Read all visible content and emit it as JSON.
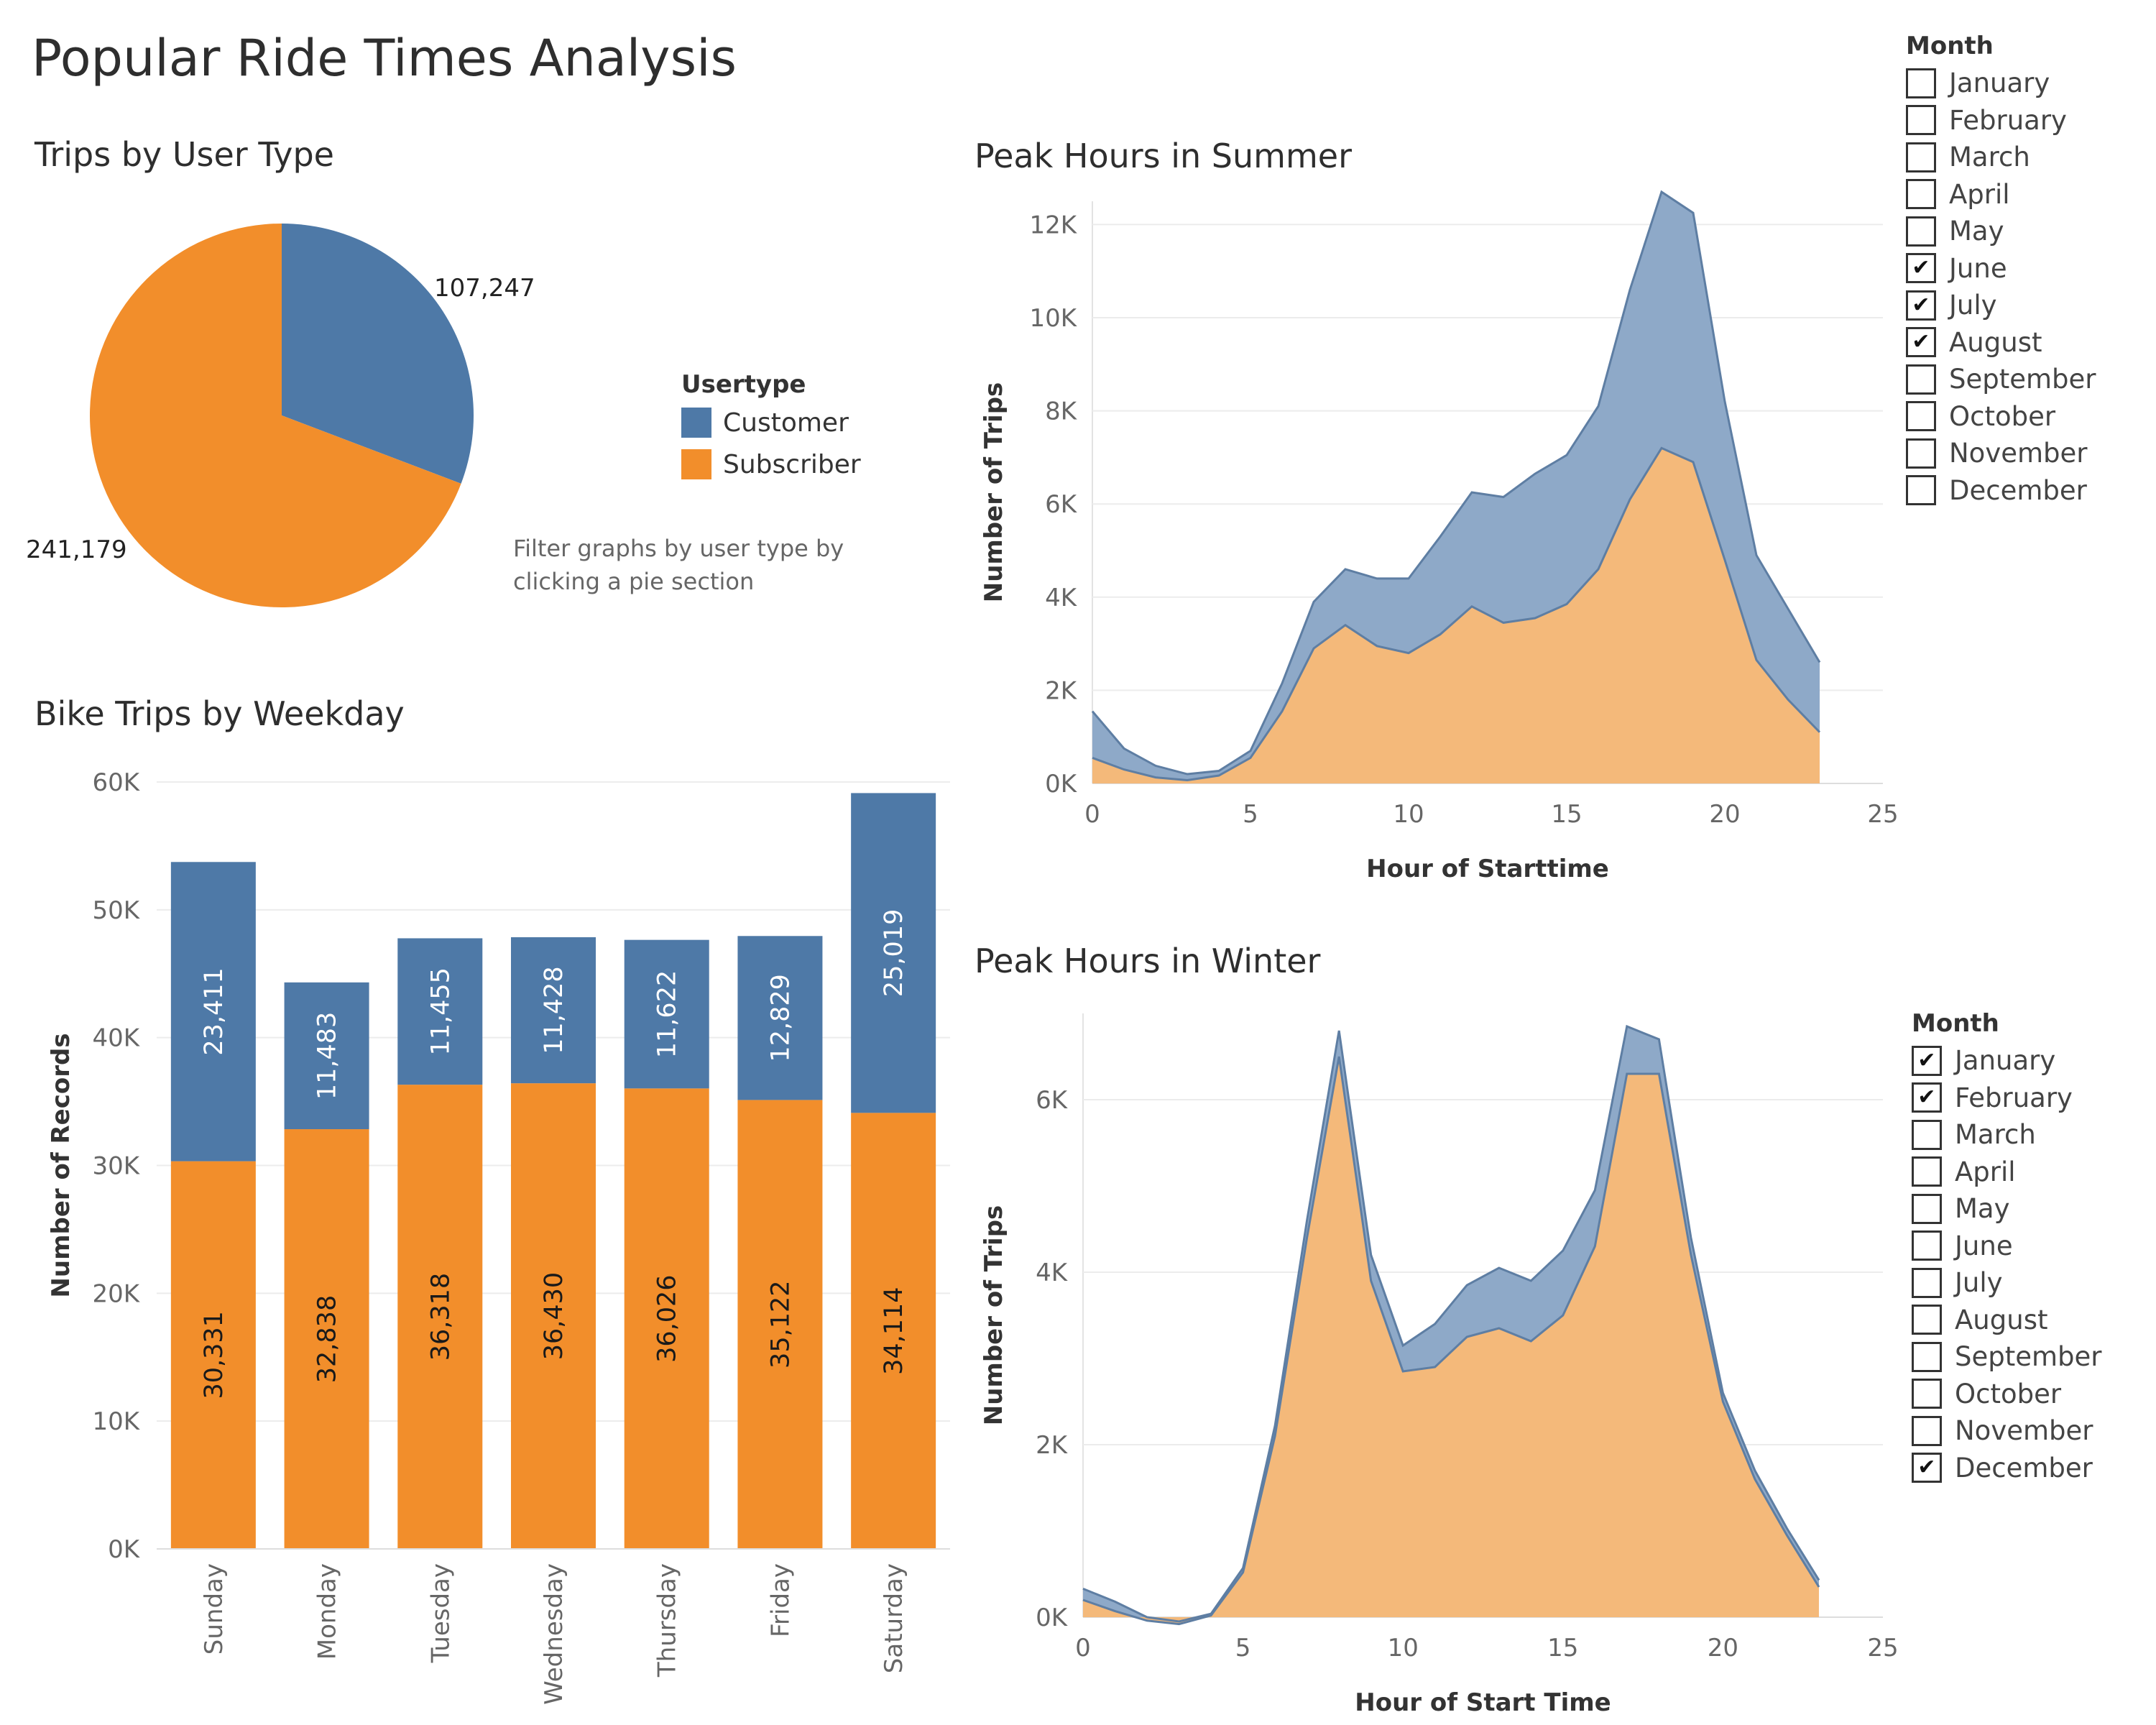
{
  "title": "Popular Ride Times Analysis",
  "colors": {
    "customer": "#4e79a7",
    "subscriber": "#f28e2b",
    "customer_area": "#8ea9c8",
    "subscriber_area": "#f4b97a",
    "grid": "#ececec"
  },
  "pie": {
    "title": "Trips by User Type",
    "legend_title": "Usertype",
    "legend": [
      {
        "label": "Customer",
        "color": "#4e79a7"
      },
      {
        "label": "Subscriber",
        "color": "#f28e2b"
      }
    ],
    "hint": "Filter graphs by user type by clicking a pie section"
  },
  "weekday": {
    "title": "Bike Trips by Weekday"
  },
  "summer": {
    "title": "Peak Hours in Summer",
    "filter_title": "Month",
    "months": [
      {
        "label": "January",
        "checked": false,
        "mark": ""
      },
      {
        "label": "February",
        "checked": false,
        "mark": ""
      },
      {
        "label": "March",
        "checked": false,
        "mark": ""
      },
      {
        "label": "April",
        "checked": false,
        "mark": ""
      },
      {
        "label": "May",
        "checked": false,
        "mark": ""
      },
      {
        "label": "June",
        "checked": true,
        "mark": "✔"
      },
      {
        "label": "July",
        "checked": true,
        "mark": "✔"
      },
      {
        "label": "August",
        "checked": true,
        "mark": "✔"
      },
      {
        "label": "September",
        "checked": false,
        "mark": ""
      },
      {
        "label": "October",
        "checked": false,
        "mark": ""
      },
      {
        "label": "November",
        "checked": false,
        "mark": ""
      },
      {
        "label": "December",
        "checked": false,
        "mark": ""
      }
    ]
  },
  "winter": {
    "title": "Peak Hours in Winter",
    "filter_title": "Month",
    "months": [
      {
        "label": "January",
        "checked": true,
        "mark": "✔"
      },
      {
        "label": "February",
        "checked": true,
        "mark": "✔"
      },
      {
        "label": "March",
        "checked": false,
        "mark": ""
      },
      {
        "label": "April",
        "checked": false,
        "mark": ""
      },
      {
        "label": "May",
        "checked": false,
        "mark": ""
      },
      {
        "label": "June",
        "checked": false,
        "mark": ""
      },
      {
        "label": "July",
        "checked": false,
        "mark": ""
      },
      {
        "label": "August",
        "checked": false,
        "mark": ""
      },
      {
        "label": "September",
        "checked": false,
        "mark": ""
      },
      {
        "label": "October",
        "checked": false,
        "mark": ""
      },
      {
        "label": "November",
        "checked": false,
        "mark": ""
      },
      {
        "label": "December",
        "checked": true,
        "mark": "✔"
      }
    ]
  },
  "chart_data": [
    {
      "type": "pie",
      "title": "Trips by User Type",
      "slices": [
        {
          "label": "Customer",
          "value": 107247,
          "display": "107,247"
        },
        {
          "label": "Subscriber",
          "value": 241179,
          "display": "241,179"
        }
      ]
    },
    {
      "type": "bar",
      "stacked": true,
      "title": "Bike Trips by Weekday",
      "xlabel": "",
      "ylabel": "Number of Records",
      "ylim": [
        0,
        60000
      ],
      "yticks": [
        0,
        10000,
        20000,
        30000,
        40000,
        50000,
        60000
      ],
      "ytick_labels": [
        "0K",
        "10K",
        "20K",
        "30K",
        "40K",
        "50K",
        "60K"
      ],
      "categories": [
        "Sunday",
        "Monday",
        "Tuesday",
        "Wednesday",
        "Thursday",
        "Friday",
        "Saturday"
      ],
      "series": [
        {
          "name": "Subscriber",
          "values": [
            30331,
            32838,
            36318,
            36430,
            36026,
            35122,
            34114
          ],
          "labels": [
            "30,331",
            "32,838",
            "36,318",
            "36,430",
            "36,026",
            "35,122",
            "34,114"
          ]
        },
        {
          "name": "Customer",
          "values": [
            23411,
            11483,
            11455,
            11428,
            11622,
            12829,
            25019
          ],
          "labels": [
            "23,411",
            "11,483",
            "11,455",
            "11,428",
            "11,622",
            "12,829",
            "25,019"
          ]
        }
      ]
    },
    {
      "type": "area",
      "stacked": true,
      "title": "Peak Hours in Summer",
      "xlabel": "Hour of Starttime",
      "ylabel": "Number of Trips",
      "xlim": [
        0,
        25
      ],
      "ylim": [
        0,
        12500
      ],
      "xticks": [
        0,
        5,
        10,
        15,
        20,
        25
      ],
      "yticks": [
        0,
        2000,
        4000,
        6000,
        8000,
        10000,
        12000
      ],
      "ytick_labels": [
        "0K",
        "2K",
        "4K",
        "6K",
        "8K",
        "10K",
        "12K"
      ],
      "x": [
        0,
        1,
        2,
        3,
        4,
        5,
        6,
        7,
        8,
        9,
        10,
        11,
        12,
        13,
        14,
        15,
        16,
        17,
        18,
        19,
        20,
        21,
        22,
        23
      ],
      "series": [
        {
          "name": "Subscriber",
          "values": [
            550,
            300,
            130,
            70,
            170,
            550,
            1550,
            2900,
            3400,
            2950,
            2800,
            3200,
            3800,
            3450,
            3550,
            3850,
            4600,
            6100,
            7200,
            6900,
            4800,
            2650,
            1800,
            1100
          ]
        },
        {
          "name": "Customer",
          "values": [
            1000,
            450,
            250,
            130,
            100,
            150,
            600,
            1000,
            1200,
            1450,
            1600,
            2100,
            2450,
            2700,
            3100,
            3200,
            3500,
            4500,
            5500,
            5350,
            3400,
            2250,
            1950,
            1500
          ]
        }
      ]
    },
    {
      "type": "area",
      "stacked": true,
      "title": "Peak Hours in Winter",
      "xlabel": "Hour of Start Time",
      "ylabel": "Number of Trips",
      "xlim": [
        0,
        25
      ],
      "ylim": [
        0,
        7000
      ],
      "xticks": [
        0,
        5,
        10,
        15,
        20,
        25
      ],
      "yticks": [
        0,
        2000,
        4000,
        6000
      ],
      "ytick_labels": [
        "0K",
        "2K",
        "4K",
        "6K"
      ],
      "x": [
        0,
        1,
        2,
        3,
        4,
        5,
        6,
        7,
        8,
        9,
        10,
        11,
        12,
        13,
        14,
        15,
        16,
        17,
        18,
        19,
        20,
        21,
        22,
        23
      ],
      "series": [
        {
          "name": "Subscriber",
          "values": [
            200,
            70,
            -40,
            -80,
            20,
            520,
            2100,
            4400,
            6500,
            3900,
            2850,
            2900,
            3250,
            3350,
            3200,
            3500,
            4300,
            6300,
            6300,
            4200,
            2500,
            1600,
            950,
            350
          ]
        },
        {
          "name": "Customer",
          "values": [
            130,
            110,
            40,
            30,
            20,
            50,
            120,
            200,
            300,
            300,
            300,
            500,
            600,
            700,
            700,
            750,
            650,
            550,
            400,
            200,
            100,
            100,
            80,
            80
          ]
        }
      ]
    }
  ]
}
